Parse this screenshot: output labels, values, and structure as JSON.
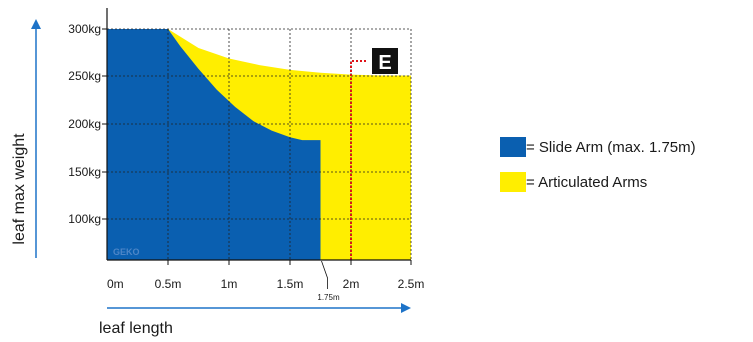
{
  "chart_data": {
    "type": "area",
    "xlabel": "leaf length",
    "ylabel": "leaf max weight",
    "x_ticks": [
      "0m",
      "0.5m",
      "1m",
      "1.5m",
      "2m",
      "2.5m"
    ],
    "y_ticks": [
      "100kg",
      "150kg",
      "200kg",
      "250kg",
      "300kg"
    ],
    "xlim": [
      0,
      2.5
    ],
    "ylim": [
      55,
      300
    ],
    "grid": true,
    "legend_position": "right",
    "series": [
      {
        "name": "= Slide Arm (max. 1.75m)",
        "color": "#0a5fb0",
        "x": [
          0,
          0.5,
          0.6,
          0.75,
          0.9,
          1.05,
          1.2,
          1.35,
          1.5,
          1.6,
          1.75
        ],
        "y": [
          300,
          300,
          282,
          258,
          236,
          218,
          203,
          193,
          186,
          183,
          183
        ]
      },
      {
        "name": "= Articulated Arms",
        "color": "#ffee00",
        "x": [
          0.5,
          0.75,
          1.0,
          1.25,
          1.5,
          1.75,
          2.0,
          2.25,
          2.5
        ],
        "y": [
          300,
          280,
          269,
          262,
          257,
          254,
          252,
          251,
          251
        ]
      }
    ],
    "annotations": [
      {
        "label": "1.75m",
        "x": 1.75
      },
      {
        "label": "E",
        "x": 2.0,
        "y": 251
      }
    ],
    "watermark": "GEKO"
  },
  "legend": {
    "slide_arm_label": "= Slide Arm (max. 1.75m)",
    "articulated_label": "= Articulated Arms"
  }
}
